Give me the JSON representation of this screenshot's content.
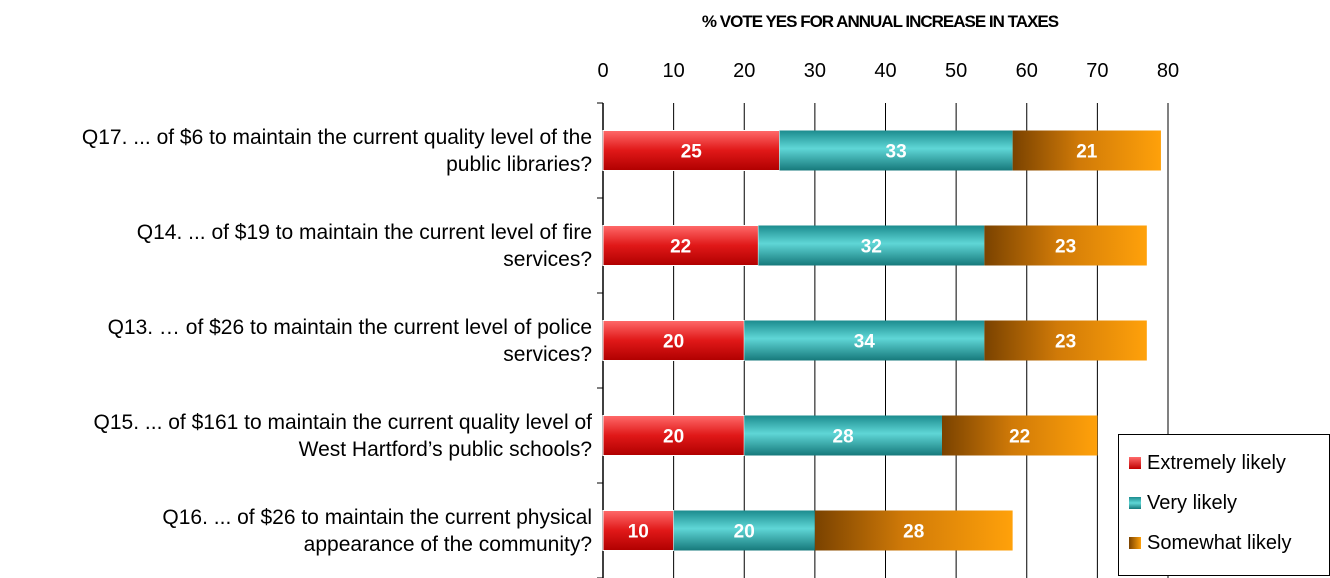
{
  "chart_data": {
    "type": "bar",
    "orientation": "horizontal",
    "stacked": true,
    "title": "% VOTE YES FOR ANNUAL INCREASE IN TAXES",
    "xlim": [
      0,
      80
    ],
    "xticks": [
      "0",
      "10",
      "20",
      "30",
      "40",
      "50",
      "60",
      "70",
      "80"
    ],
    "grid": true,
    "legend_position": "bottom-right",
    "categories": [
      "Q17.  ... of $6 to maintain the current quality level of the public libraries?",
      "Q14.  ... of $19 to maintain the current level of fire services?",
      "Q13.  … of $26 to maintain the current level of police services?",
      "Q15.  ... of $161 to maintain the current quality level of West Hartford’s public schools?",
      "Q16.  ... of $26 to maintain the current physical appearance of the community?"
    ],
    "category_lines": [
      [
        "Q17.  ... of $6 to maintain the current quality level of the",
        "public libraries?"
      ],
      [
        "Q14.  ... of $19 to maintain the current level of fire",
        "services?"
      ],
      [
        "Q13.  … of $26 to maintain the current level of police",
        "services?"
      ],
      [
        "Q15.  ... of $161 to maintain the current quality level of",
        "West Hartford’s public schools?"
      ],
      [
        "Q16.  ... of $26 to maintain the current physical",
        "appearance of the community?"
      ]
    ],
    "series": [
      {
        "name": "Extremely likely",
        "color": "#e02020",
        "values": [
          25,
          22,
          20,
          20,
          10
        ]
      },
      {
        "name": "Very likely",
        "color": "#2aa6a8",
        "values": [
          33,
          32,
          34,
          28,
          20
        ]
      },
      {
        "name": "Somewhat likely",
        "color": "#f59a0a",
        "values": [
          21,
          23,
          23,
          22,
          28
        ]
      }
    ]
  }
}
